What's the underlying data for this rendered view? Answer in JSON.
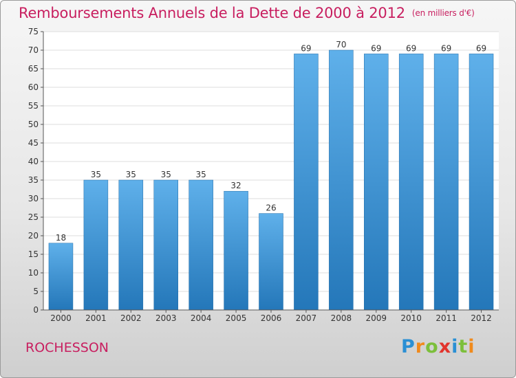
{
  "title": "Remboursements Annuels de la Dette de 2000 à 2012",
  "unit": "(en milliers d'€)",
  "commune": "ROCHESSON",
  "logo": {
    "letters": [
      "P",
      "r",
      "o",
      "x",
      "i",
      "t",
      "i"
    ],
    "colors": [
      "#2a8fd4",
      "#f08a1c",
      "#7cbf3b",
      "#e2342d",
      "#2a8fd4",
      "#7cbf3b",
      "#f08a1c"
    ]
  },
  "chart_data": {
    "type": "bar",
    "categories": [
      "2000",
      "2001",
      "2002",
      "2003",
      "2004",
      "2005",
      "2006",
      "2007",
      "2008",
      "2009",
      "2010",
      "2011",
      "2012"
    ],
    "values": [
      18,
      35,
      35,
      35,
      35,
      32,
      26,
      69,
      70,
      69,
      69,
      69,
      69
    ],
    "ylim": [
      0,
      75
    ],
    "yticks": [
      0,
      5,
      10,
      15,
      20,
      25,
      30,
      35,
      40,
      45,
      50,
      55,
      60,
      65,
      70,
      75
    ],
    "grid": true,
    "bar_color": "#3d96d8",
    "title": "Remboursements Annuels de la Dette de 2000 à 2012",
    "xlabel": "",
    "ylabel": ""
  }
}
